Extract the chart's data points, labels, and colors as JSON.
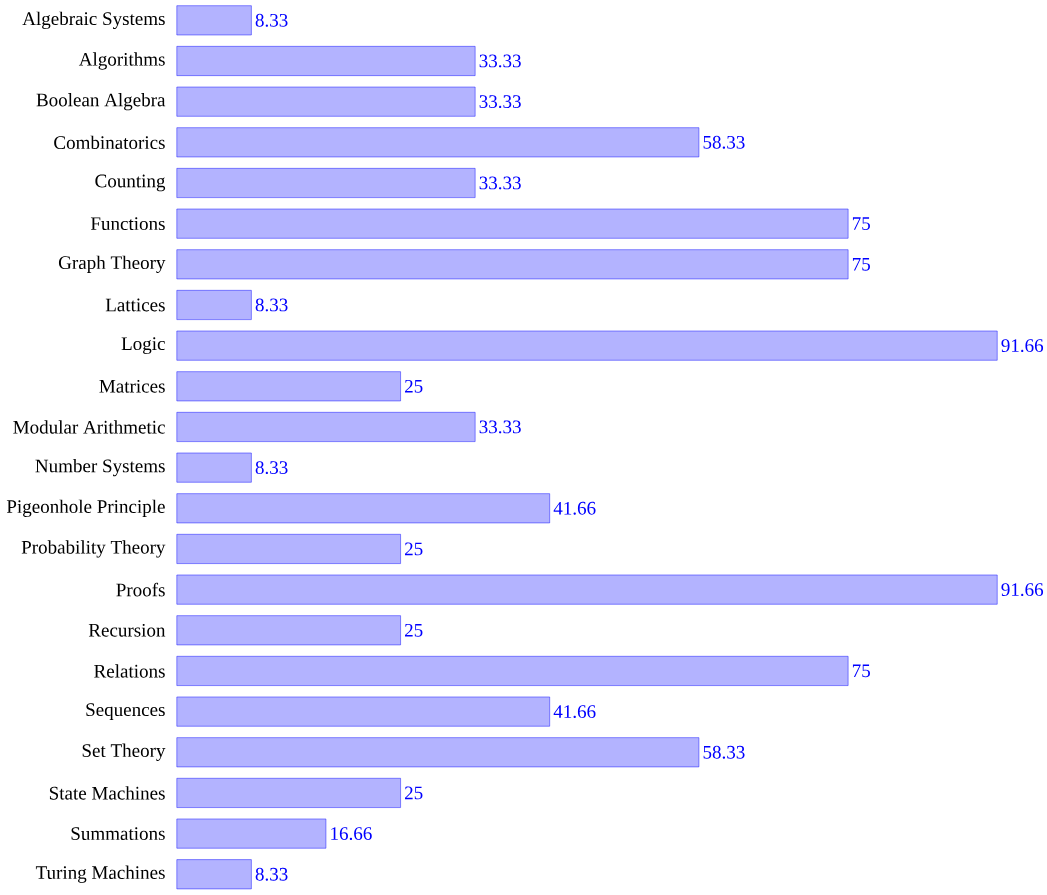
{
  "chart_data": {
    "type": "bar",
    "orientation": "horizontal",
    "categories": [
      "Algebraic Systems",
      "Algorithms",
      "Boolean Algebra",
      "Combinatorics",
      "Counting",
      "Functions",
      "Graph Theory",
      "Lattices",
      "Logic",
      "Matrices",
      "Modular Arithmetic",
      "Number Systems",
      "Pigeonhole Principle",
      "Probability Theory",
      "Proofs",
      "Recursion",
      "Relations",
      "Sequences",
      "Set Theory",
      "State Machines",
      "Summations",
      "Turing Machines"
    ],
    "values": [
      8.33,
      33.33,
      33.33,
      58.33,
      33.33,
      75,
      75,
      8.33,
      91.66,
      25,
      33.33,
      8.33,
      41.66,
      25,
      91.66,
      25,
      75,
      41.66,
      58.33,
      25,
      16.66,
      8.33
    ],
    "color": "#b3b3ff",
    "data_labels": true
  }
}
